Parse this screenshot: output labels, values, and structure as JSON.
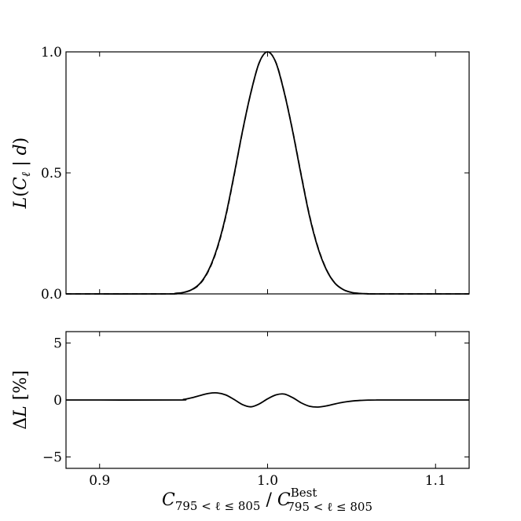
{
  "chart_data": [
    {
      "type": "line",
      "panel": "top",
      "ylabel_parts": [
        "L",
        "(",
        "C",
        "ℓ",
        " | ",
        "d",
        ")"
      ],
      "xlim": [
        0.88,
        1.12
      ],
      "ylim": [
        0.0,
        1.0
      ],
      "x_ticks": [
        0.9,
        1.0,
        1.1
      ],
      "y_ticks": [
        0.0,
        0.5,
        1.0
      ],
      "y_tick_labels": [
        "0.0",
        "0.5",
        "1.0"
      ],
      "series": [
        {
          "style": "solid",
          "x": [
            0.88,
            0.94,
            0.945,
            0.95,
            0.955,
            0.96,
            0.965,
            0.97,
            0.975,
            0.98,
            0.985,
            0.99,
            0.995,
            1.0,
            1.005,
            1.01,
            1.015,
            1.02,
            1.025,
            1.03,
            1.035,
            1.04,
            1.045,
            1.05,
            1.055,
            1.06,
            1.065,
            1.12
          ],
          "y": [
            0.0,
            0.0,
            0.002,
            0.006,
            0.018,
            0.045,
            0.1,
            0.19,
            0.32,
            0.49,
            0.67,
            0.83,
            0.955,
            1.0,
            0.955,
            0.83,
            0.67,
            0.49,
            0.32,
            0.19,
            0.1,
            0.045,
            0.018,
            0.006,
            0.002,
            0.0005,
            0.0,
            0.0
          ]
        },
        {
          "style": "dashed",
          "x": [
            0.88,
            0.94,
            0.945,
            0.95,
            0.955,
            0.96,
            0.965,
            0.97,
            0.975,
            0.98,
            0.985,
            0.99,
            0.995,
            1.0,
            1.005,
            1.01,
            1.015,
            1.02,
            1.025,
            1.03,
            1.035,
            1.04,
            1.045,
            1.05,
            1.055,
            1.06,
            1.065,
            1.12
          ],
          "y": [
            0.0,
            0.0,
            0.002,
            0.006,
            0.017,
            0.043,
            0.097,
            0.186,
            0.316,
            0.486,
            0.668,
            0.829,
            0.954,
            1.0,
            0.956,
            0.832,
            0.672,
            0.494,
            0.324,
            0.193,
            0.102,
            0.046,
            0.018,
            0.006,
            0.002,
            0.0005,
            0.0,
            0.0
          ]
        }
      ]
    },
    {
      "type": "line",
      "panel": "bottom",
      "ylabel_parts": [
        "Δ",
        "L",
        " [%]"
      ],
      "xlabel_parts": [
        "C",
        "795 < ℓ ≤ 805",
        " / ",
        "C",
        "Best",
        "795 < ℓ ≤ 805"
      ],
      "xlim": [
        0.88,
        1.12
      ],
      "ylim": [
        -6.0,
        6.0
      ],
      "x_ticks": [
        0.9,
        1.0,
        1.1
      ],
      "x_tick_labels": [
        "0.9",
        "1.0",
        "1.1"
      ],
      "y_ticks": [
        -5,
        0,
        5
      ],
      "y_tick_labels": [
        "−5",
        "0",
        "5"
      ],
      "series": [
        {
          "style": "solid",
          "x": [
            0.88,
            0.945,
            0.95,
            0.955,
            0.96,
            0.965,
            0.97,
            0.975,
            0.98,
            0.985,
            0.99,
            0.995,
            1.0,
            1.005,
            1.01,
            1.015,
            1.02,
            1.025,
            1.03,
            1.035,
            1.04,
            1.045,
            1.05,
            1.055,
            1.06,
            1.065,
            1.07,
            1.12
          ],
          "y": [
            0.0,
            0.0,
            0.05,
            0.2,
            0.4,
            0.58,
            0.62,
            0.45,
            0.05,
            -0.4,
            -0.6,
            -0.35,
            0.1,
            0.45,
            0.52,
            0.2,
            -0.25,
            -0.55,
            -0.62,
            -0.52,
            -0.35,
            -0.2,
            -0.1,
            -0.04,
            -0.01,
            0.0,
            0.0,
            0.0
          ]
        }
      ]
    }
  ]
}
